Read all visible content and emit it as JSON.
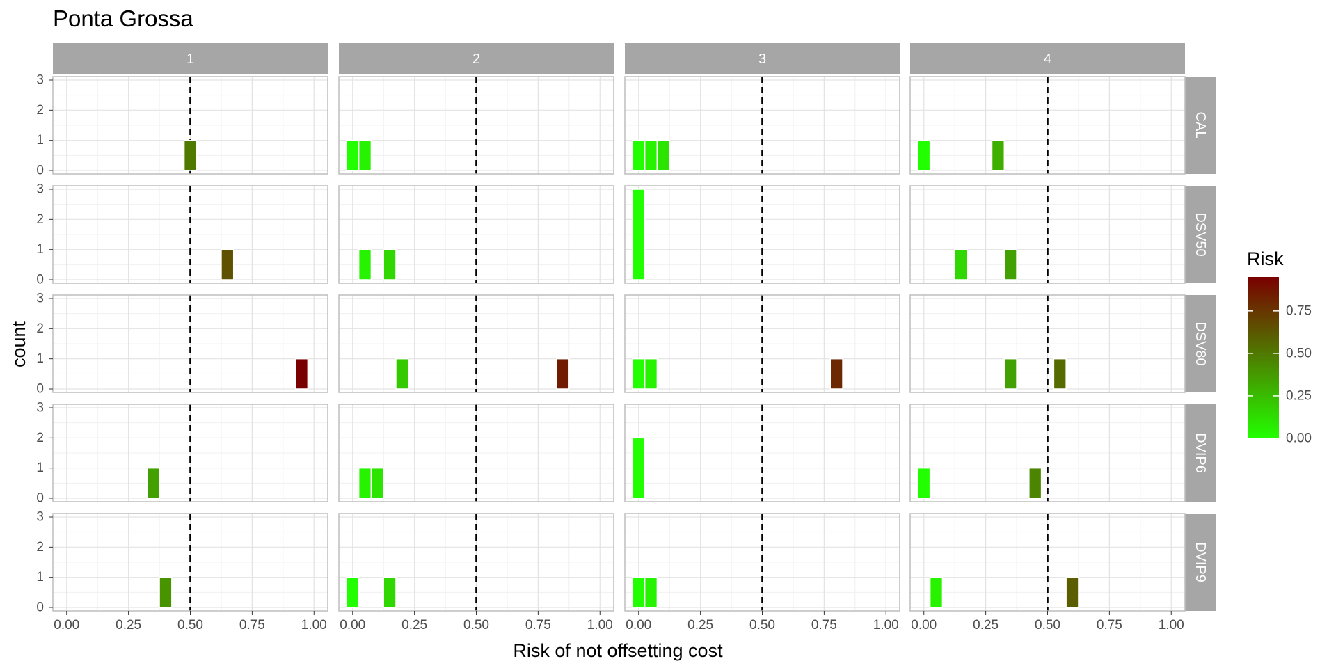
{
  "chart_data": {
    "type": "bar",
    "subtype": "faceted histogram",
    "title": "Ponta Grossa",
    "xlabel": "Risk of not offsetting cost",
    "ylabel": "count",
    "xlim": [
      0,
      1
    ],
    "ylim": [
      0,
      3
    ],
    "x_ticks": [
      "0.00",
      "0.25",
      "0.50",
      "0.75",
      "1.00"
    ],
    "y_ticks": [
      "0",
      "1",
      "2",
      "3"
    ],
    "bin_width": 0.05,
    "reference_line": {
      "x": 0.5,
      "style": "dashed",
      "color": "#000000"
    },
    "grid": true,
    "col_facets": [
      "1",
      "2",
      "3",
      "4"
    ],
    "row_facets": [
      "CAL",
      "DSV50",
      "DSV80",
      "DVIP6",
      "DVIP9"
    ],
    "color_scale": {
      "name": "Risk",
      "low_color": "#22ff00",
      "high_color": "#7a0000",
      "range": [
        0,
        0.95
      ],
      "ticks": [
        "0.00",
        "0.25",
        "0.50",
        "0.75"
      ],
      "legend_position": "right"
    },
    "bars": [
      {
        "row": "CAL",
        "col": "1",
        "x": 0.5,
        "count": 1
      },
      {
        "row": "CAL",
        "col": "2",
        "x": 0.0,
        "count": 1
      },
      {
        "row": "CAL",
        "col": "2",
        "x": 0.05,
        "count": 1
      },
      {
        "row": "CAL",
        "col": "3",
        "x": 0.0,
        "count": 1
      },
      {
        "row": "CAL",
        "col": "3",
        "x": 0.05,
        "count": 1
      },
      {
        "row": "CAL",
        "col": "3",
        "x": 0.1,
        "count": 1
      },
      {
        "row": "CAL",
        "col": "4",
        "x": 0.0,
        "count": 1
      },
      {
        "row": "CAL",
        "col": "4",
        "x": 0.3,
        "count": 1
      },
      {
        "row": "DSV50",
        "col": "1",
        "x": 0.65,
        "count": 1
      },
      {
        "row": "DSV50",
        "col": "2",
        "x": 0.05,
        "count": 1
      },
      {
        "row": "DSV50",
        "col": "2",
        "x": 0.15,
        "count": 1
      },
      {
        "row": "DSV50",
        "col": "3",
        "x": 0.0,
        "count": 3
      },
      {
        "row": "DSV50",
        "col": "4",
        "x": 0.15,
        "count": 1
      },
      {
        "row": "DSV50",
        "col": "4",
        "x": 0.35,
        "count": 1
      },
      {
        "row": "DSV80",
        "col": "1",
        "x": 0.95,
        "count": 1
      },
      {
        "row": "DSV80",
        "col": "2",
        "x": 0.2,
        "count": 1
      },
      {
        "row": "DSV80",
        "col": "2",
        "x": 0.85,
        "count": 1
      },
      {
        "row": "DSV80",
        "col": "3",
        "x": 0.0,
        "count": 1
      },
      {
        "row": "DSV80",
        "col": "3",
        "x": 0.05,
        "count": 1
      },
      {
        "row": "DSV80",
        "col": "3",
        "x": 0.8,
        "count": 1
      },
      {
        "row": "DSV80",
        "col": "4",
        "x": 0.35,
        "count": 1
      },
      {
        "row": "DSV80",
        "col": "4",
        "x": 0.55,
        "count": 1
      },
      {
        "row": "DVIP6",
        "col": "1",
        "x": 0.35,
        "count": 1
      },
      {
        "row": "DVIP6",
        "col": "2",
        "x": 0.05,
        "count": 1
      },
      {
        "row": "DVIP6",
        "col": "2",
        "x": 0.1,
        "count": 1
      },
      {
        "row": "DVIP6",
        "col": "3",
        "x": 0.0,
        "count": 2
      },
      {
        "row": "DVIP6",
        "col": "4",
        "x": 0.0,
        "count": 1
      },
      {
        "row": "DVIP6",
        "col": "4",
        "x": 0.45,
        "count": 1
      },
      {
        "row": "DVIP9",
        "col": "1",
        "x": 0.4,
        "count": 1
      },
      {
        "row": "DVIP9",
        "col": "2",
        "x": 0.0,
        "count": 1
      },
      {
        "row": "DVIP9",
        "col": "2",
        "x": 0.15,
        "count": 1
      },
      {
        "row": "DVIP9",
        "col": "3",
        "x": 0.0,
        "count": 1
      },
      {
        "row": "DVIP9",
        "col": "3",
        "x": 0.05,
        "count": 1
      },
      {
        "row": "DVIP9",
        "col": "4",
        "x": 0.05,
        "count": 1
      },
      {
        "row": "DVIP9",
        "col": "4",
        "x": 0.6,
        "count": 1
      }
    ]
  }
}
